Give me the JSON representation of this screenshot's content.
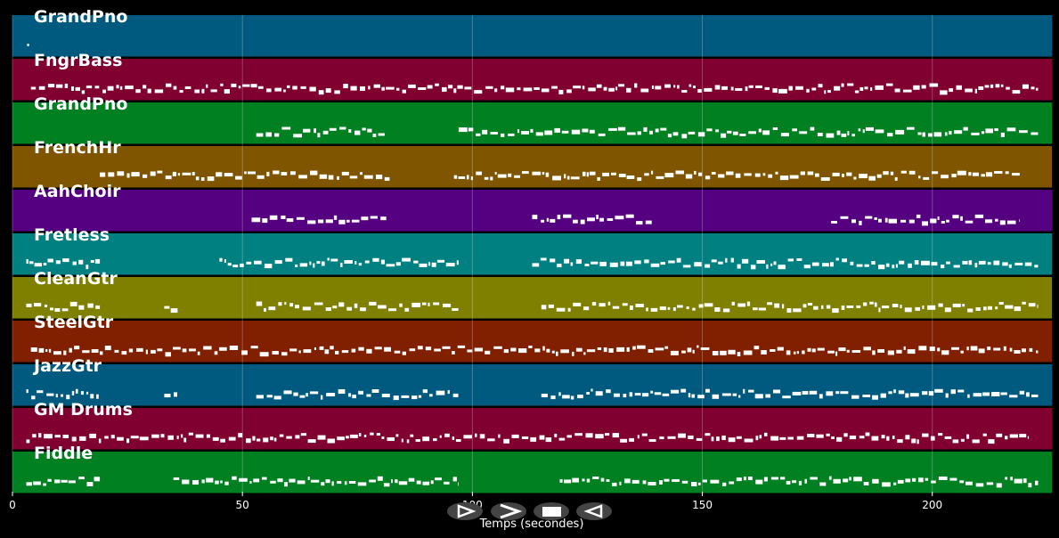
{
  "chart_data": {
    "type": "piano-roll",
    "xlabel": "Temps (secondes)",
    "xlim": [
      0,
      226
    ],
    "xticks": [
      0,
      50,
      100,
      150,
      200
    ],
    "grid": true,
    "tracks": [
      {
        "name": "GrandPno",
        "color": "#005a80",
        "segments": [
          [
            3.2,
            3.6
          ]
        ]
      },
      {
        "name": "FngrBass",
        "color": "#800030",
        "segments": [
          [
            4,
            223
          ]
        ]
      },
      {
        "name": "GrandPno",
        "color": "#008020",
        "segments": [
          [
            53,
            81
          ],
          [
            97,
            223
          ]
        ]
      },
      {
        "name": "FrenchHr",
        "color": "#805500",
        "segments": [
          [
            19,
            82
          ],
          [
            96,
            219
          ]
        ]
      },
      {
        "name": "AahChoir",
        "color": "#550080",
        "segments": [
          [
            52,
            82
          ],
          [
            113,
            139
          ],
          [
            178,
            219
          ]
        ]
      },
      {
        "name": "Fretless",
        "color": "#008080",
        "segments": [
          [
            3,
            19
          ],
          [
            45,
            97
          ],
          [
            113,
            223
          ]
        ]
      },
      {
        "name": "CleanGtr",
        "color": "#808000",
        "segments": [
          [
            3,
            19
          ],
          [
            33,
            36
          ],
          [
            53,
            97
          ],
          [
            115,
            223
          ]
        ]
      },
      {
        "name": "SteelGtr",
        "color": "#802000",
        "segments": [
          [
            4,
            223
          ]
        ]
      },
      {
        "name": "JazzGtr",
        "color": "#005a80",
        "segments": [
          [
            3,
            19
          ],
          [
            33,
            36
          ],
          [
            53,
            97
          ],
          [
            115,
            223
          ]
        ]
      },
      {
        "name": "GM Drums",
        "color": "#800030",
        "segments": [
          [
            3,
            221
          ]
        ]
      },
      {
        "name": "Fiddle",
        "color": "#008020",
        "segments": [
          [
            3,
            19
          ],
          [
            35,
            97
          ],
          [
            119,
            223
          ]
        ]
      }
    ]
  },
  "controls": [
    {
      "name": "play-button",
      "icon": "play-icon"
    },
    {
      "name": "fast-forward-button",
      "icon": "fast-forward-icon"
    },
    {
      "name": "stop-button",
      "icon": "stop-icon"
    },
    {
      "name": "rewind-button",
      "icon": "rewind-icon"
    }
  ]
}
